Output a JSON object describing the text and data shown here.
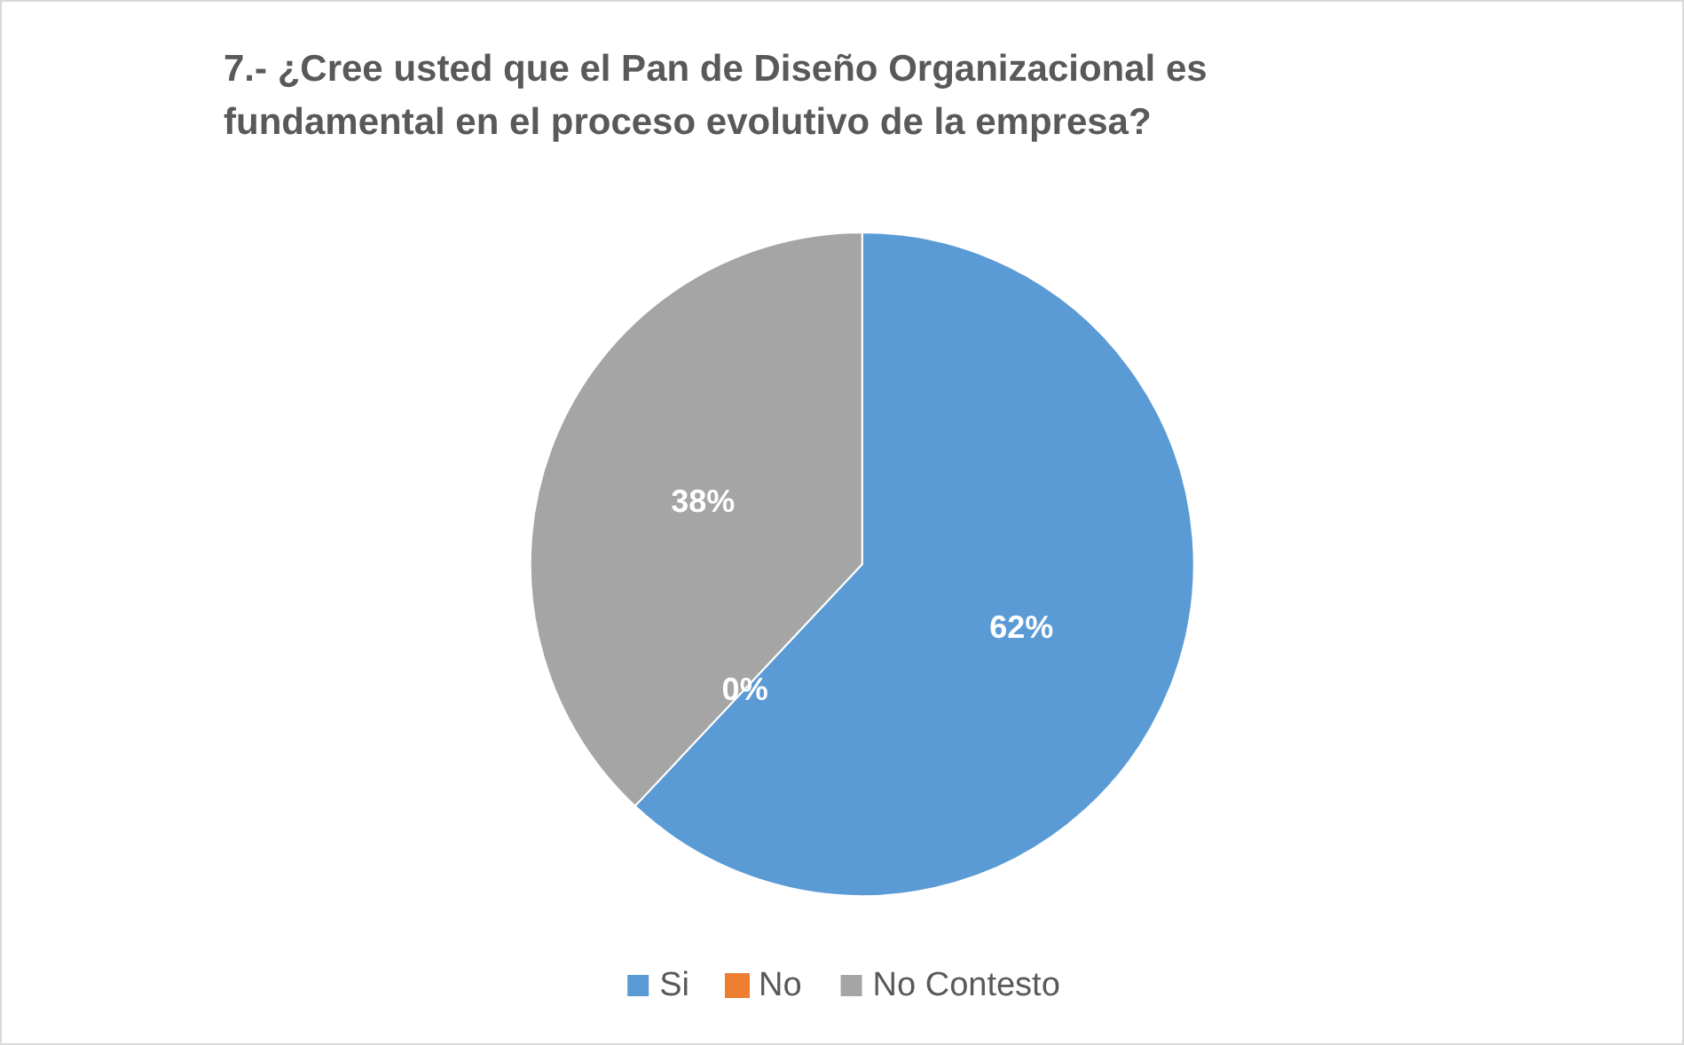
{
  "chart_data": {
    "type": "pie",
    "title": "7.- ¿Cree usted que el Pan de Diseño Organizacional es fundamental en el proceso evolutivo de la empresa?",
    "categories": [
      "Si",
      "No",
      "No Contesto"
    ],
    "values": [
      62,
      0,
      38
    ],
    "colors": [
      "#5b9bd5",
      "#ed7d31",
      "#a5a5a5"
    ],
    "value_labels": [
      "62%",
      "0%",
      "38%"
    ],
    "legend": "bottom"
  }
}
